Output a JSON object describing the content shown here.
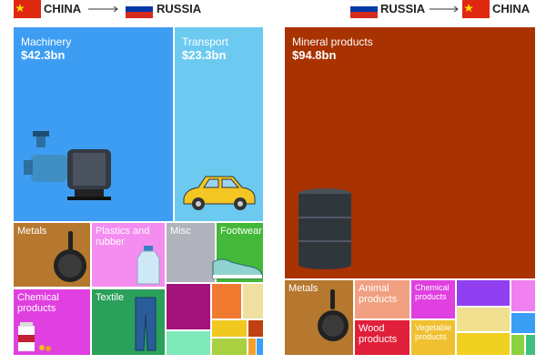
{
  "left": {
    "from": "CHINA",
    "to": "RUSSIA",
    "tiles": [
      {
        "label": "Machinery",
        "value": "$42.3bn"
      },
      {
        "label": "Transport",
        "value": "$23.3bn"
      },
      {
        "label": "Metals"
      },
      {
        "label": "Plastics and rubber"
      },
      {
        "label": "Misc"
      },
      {
        "label": "Footwear"
      },
      {
        "label": "Chemical products"
      },
      {
        "label": "Textile"
      }
    ]
  },
  "right": {
    "from": "RUSSIA",
    "to": "CHINA",
    "tiles": [
      {
        "label": "Mineral products",
        "value": "$94.8bn"
      },
      {
        "label": "Metals"
      },
      {
        "label": "Animal products"
      },
      {
        "label": "Chemical products"
      },
      {
        "label": "Wood products"
      },
      {
        "label": "Vegetable products"
      }
    ]
  }
}
